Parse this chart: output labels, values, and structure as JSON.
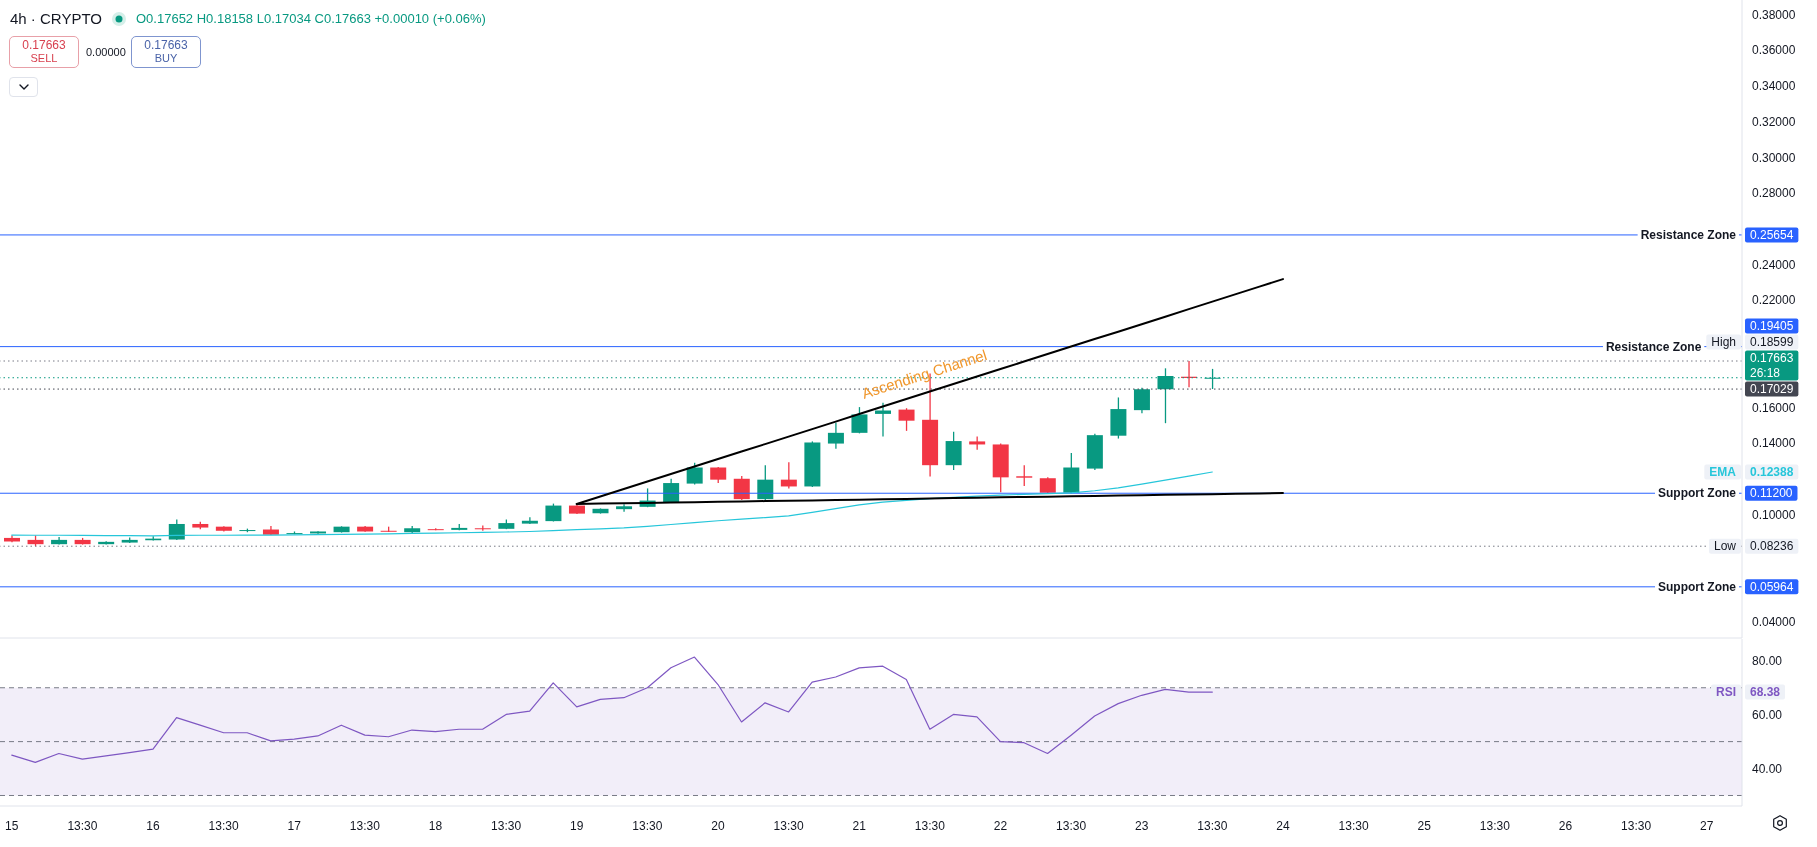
{
  "chart_data": [
    {
      "type": "candlestick",
      "title": "4h · CRYPTO",
      "subtitle": "O0.17652 H0.18158 L0.17034 C0.17663 +0.00010 (+0.06%)",
      "annotations": [
        "0.17663",
        "SELL",
        "0.00000",
        "0.17663",
        "BUY",
        "Ascending Channel",
        "0.25654",
        "0.19405",
        "0.11200",
        "0.05964",
        "0.18599",
        "0.17663",
        "0.17029",
        "0.08236",
        "0.12388"
      ],
      "categories": [
        null,
        null,
        null,
        null,
        null,
        null,
        null,
        null,
        null,
        null,
        null,
        null,
        null,
        null,
        null,
        null,
        null,
        null,
        null,
        null,
        null,
        null,
        null,
        null,
        null,
        null,
        null,
        null,
        null,
        null,
        null,
        null,
        null,
        null,
        null,
        null,
        null,
        null,
        null,
        null,
        null,
        null,
        null,
        null,
        null,
        null,
        null,
        null,
        null,
        null,
        null,
        null,
        null,
        null,
        null,
        null,
        null,
        null,
        null,
        null,
        null,
        null,
        null,
        null,
        null,
        null,
        null,
        null,
        null,
        null,
        null,
        null,
        null,
        null
      ],
      "ohlc": [
        [
          0.087,
          0.0884,
          0.0846,
          0.085
        ],
        [
          0.0859,
          0.0884,
          0.08236,
          0.0835
        ],
        [
          0.0835,
          0.0875,
          0.0833,
          0.0859
        ],
        [
          0.0859,
          0.087,
          0.0833,
          0.0835
        ],
        [
          0.0835,
          0.0852,
          0.0833,
          0.0848
        ],
        [
          0.0844,
          0.0873,
          0.0842,
          0.0859
        ],
        [
          0.0857,
          0.0879,
          0.0855,
          0.0866
        ],
        [
          0.0861,
          0.0973,
          0.0859,
          0.0948
        ],
        [
          0.0948,
          0.096,
          0.0919,
          0.0928
        ],
        [
          0.0933,
          0.0935,
          0.0906,
          0.091
        ],
        [
          0.0912,
          0.0922,
          0.0902,
          0.0914
        ],
        [
          0.0917,
          0.0937,
          0.0886,
          0.0888
        ],
        [
          0.0893,
          0.0906,
          0.0891,
          0.0897
        ],
        [
          0.0895,
          0.0908,
          0.0893,
          0.0906
        ],
        [
          0.0902,
          0.0935,
          0.09,
          0.0933
        ],
        [
          0.0933,
          0.0937,
          0.0904,
          0.0906
        ],
        [
          0.091,
          0.0933,
          0.0904,
          0.0906
        ],
        [
          0.0902,
          0.0937,
          0.0897,
          0.0924
        ],
        [
          0.0919,
          0.0924,
          0.0913,
          0.0915
        ],
        [
          0.0915,
          0.0948,
          0.0913,
          0.0926
        ],
        [
          0.0924,
          0.0939,
          0.091,
          0.0919
        ],
        [
          0.0921,
          0.0973,
          0.0919,
          0.0953
        ],
        [
          0.095,
          0.0986,
          0.0948,
          0.0966
        ],
        [
          0.0964,
          0.1062,
          0.0962,
          0.1051
        ],
        [
          0.1051,
          0.1062,
          0.1004,
          0.1006
        ],
        [
          0.1008,
          0.1035,
          0.1006,
          0.1033
        ],
        [
          0.1031,
          0.1058,
          0.1017,
          0.1047
        ],
        [
          0.1044,
          0.1147,
          0.1042,
          0.1079
        ],
        [
          0.1071,
          0.1201,
          0.1068,
          0.1177
        ],
        [
          0.1174,
          0.1291,
          0.1169,
          0.1264
        ],
        [
          0.1264,
          0.1267,
          0.1177,
          0.1196
        ],
        [
          0.1201,
          0.1217,
          0.1082,
          0.1087
        ],
        [
          0.1087,
          0.1277,
          0.1082,
          0.1196
        ],
        [
          0.1196,
          0.1293,
          0.1147,
          0.1158
        ],
        [
          0.1158,
          0.141,
          0.1155,
          0.1404
        ],
        [
          0.1398,
          0.1514,
          0.1369,
          0.1458
        ],
        [
          0.1458,
          0.1602,
          0.1455,
          0.1561
        ],
        [
          0.1564,
          0.1626,
          0.1438,
          0.1583
        ],
        [
          0.1588,
          0.1596,
          0.1469,
          0.1526
        ],
        [
          0.1531,
          0.179,
          0.1214,
          0.1277
        ],
        [
          0.1277,
          0.1464,
          0.125,
          0.1412
        ],
        [
          0.141,
          0.1437,
          0.1364,
          0.1393
        ],
        [
          0.1393,
          0.1398,
          0.1125,
          0.1209
        ],
        [
          0.1215,
          0.1277,
          0.116,
          0.1207
        ],
        [
          0.1204,
          0.1209,
          0.112,
          0.1123
        ],
        [
          0.1123,
          0.1345,
          0.112,
          0.1264
        ],
        [
          0.1258,
          0.1453,
          0.125,
          0.1445
        ],
        [
          0.1442,
          0.1656,
          0.1426,
          0.1591
        ],
        [
          0.1585,
          0.171,
          0.1568,
          0.1702
        ],
        [
          0.1702,
          0.1819,
          0.1512,
          0.1776
        ],
        [
          0.1772,
          0.18599,
          0.1713,
          0.1765
        ],
        [
          0.17652,
          0.18158,
          0.17034,
          0.17663
        ],
        null,
        null,
        null,
        null,
        null,
        null,
        null,
        null,
        null,
        null,
        null,
        null,
        null,
        null,
        null,
        null,
        null,
        null,
        null,
        null,
        null,
        null
      ],
      "colors": [
        "#f23645",
        "#f23645",
        "#089981",
        "#f23645",
        "#089981",
        "#089981",
        "#089981",
        "#089981",
        "#f23645",
        "#f23645",
        "#089981",
        "#f23645",
        "#089981",
        "#089981",
        "#089981",
        "#f23645",
        "#f23645",
        "#089981",
        "#f23645",
        "#089981",
        "#f23645",
        "#089981",
        "#089981",
        "#089981",
        "#f23645",
        "#089981",
        "#089981",
        "#089981",
        "#089981",
        "#089981",
        "#f23645",
        "#f23645",
        "#089981",
        "#f23645",
        "#089981",
        "#089981",
        "#089981",
        "#089981",
        "#f23645",
        "#f23645",
        "#089981",
        "#f23645",
        "#f23645",
        "#f23645",
        "#f23645",
        "#089981",
        "#089981",
        "#089981",
        "#089981",
        "#089981",
        "#f23645",
        "#089981",
        null,
        null,
        null,
        null,
        null,
        null,
        null,
        null,
        null,
        null,
        null,
        null,
        null,
        null,
        null,
        null,
        null,
        null,
        null,
        null,
        null,
        null
      ],
      "series": [
        {
          "type": "line",
          "name": "EMA",
          "color": "#26c6da",
          "values": [
            0.0886,
            0.0885,
            0.0885,
            0.0884,
            0.0883,
            0.0883,
            0.0882,
            0.0884,
            0.0885,
            0.0885,
            0.0886,
            0.0886,
            0.0887,
            0.0888,
            0.089,
            0.0891,
            0.0893,
            0.0895,
            0.0897,
            0.0899,
            0.0901,
            0.0903,
            0.0906,
            0.0911,
            0.0916,
            0.0921,
            0.0926,
            0.0935,
            0.0945,
            0.0956,
            0.0966,
            0.0975,
            0.0984,
            0.0993,
            0.1013,
            0.1034,
            0.1055,
            0.107,
            0.108,
            0.109,
            0.1097,
            0.1104,
            0.111,
            0.1114,
            0.1118,
            0.1122,
            0.1134,
            0.115,
            0.1171,
            0.1193,
            0.1216,
            0.12388,
            null,
            null,
            null,
            null,
            null,
            null,
            null,
            null,
            null,
            null,
            null,
            null,
            null,
            null,
            null,
            null,
            null,
            null,
            null,
            null,
            null,
            null
          ]
        },
        {
          "type": "line",
          "color": "#000000",
          "values": [
            null,
            null,
            null,
            null,
            null,
            null,
            null,
            null,
            null,
            null,
            null,
            null,
            null,
            null,
            null,
            null,
            null,
            null,
            null,
            null,
            null,
            null,
            null,
            null,
            0.106,
            0.1102,
            0.1144,
            0.1186,
            0.1228,
            0.127,
            0.1312,
            0.1354,
            0.1395,
            0.1437,
            0.1479,
            0.1521,
            0.1563,
            0.1605,
            0.1647,
            0.1689,
            0.1731,
            0.1773,
            0.1815,
            0.1857,
            0.1899,
            0.1941,
            0.1983,
            0.2024,
            0.2066,
            0.2108,
            0.215,
            0.2192,
            0.2234,
            0.2276,
            0.2318,
            null,
            null,
            null,
            null,
            null,
            null,
            null,
            null,
            null,
            null,
            null,
            null,
            null,
            null,
            null,
            null,
            null,
            null,
            null
          ]
        },
        {
          "type": "line",
          "color": "#000000",
          "values": [
            null,
            null,
            null,
            null,
            null,
            null,
            null,
            null,
            null,
            null,
            null,
            null,
            null,
            null,
            null,
            null,
            null,
            null,
            null,
            null,
            null,
            null,
            null,
            null,
            0.106,
            0.1062,
            0.1064,
            0.1066,
            0.1068,
            0.107,
            0.1072,
            0.1074,
            0.1076,
            0.1078,
            0.108,
            0.1082,
            0.1084,
            0.1086,
            0.1088,
            0.1091,
            0.1093,
            0.1095,
            0.1097,
            0.1099,
            0.1101,
            0.1103,
            0.1105,
            0.1107,
            0.1109,
            0.1111,
            0.1113,
            0.1115,
            0.1117,
            0.1119,
            0.1121,
            null,
            null,
            null,
            null,
            null,
            null,
            null,
            null,
            null,
            null,
            null,
            null,
            null,
            null,
            null,
            null,
            null,
            null,
            null
          ]
        }
      ],
      "ylim": [
        0.031,
        0.388
      ],
      "yticks": [
        {
          "value": 0.04,
          "label": "0.04000"
        },
        {
          "value": 0.1,
          "label": "0.10000"
        },
        {
          "value": 0.14,
          "label": "0.14000"
        },
        {
          "value": 0.16,
          "label": "0.16000"
        },
        {
          "value": 0.22,
          "label": "0.22000"
        },
        {
          "value": 0.24,
          "label": "0.24000"
        },
        {
          "value": 0.28,
          "label": "0.28000"
        },
        {
          "value": 0.3,
          "label": "0.30000"
        },
        {
          "value": 0.32,
          "label": "0.32000"
        },
        {
          "value": 0.34,
          "label": "0.34000"
        },
        {
          "value": 0.36,
          "label": "0.36000"
        },
        {
          "value": 0.38,
          "label": "0.38000"
        }
      ],
      "ref_lines": [
        {
          "axis": "y",
          "value": 0.25654,
          "label": "Resistance Zone",
          "color": "#2962ff"
        },
        {
          "axis": "y",
          "value": 0.19405,
          "label": "Resistance Zone",
          "color": "#2962ff"
        },
        {
          "axis": "y",
          "value": 0.112,
          "label": "Support Zone",
          "color": "#2962ff"
        },
        {
          "axis": "y",
          "value": 0.05964,
          "label": "Support Zone",
          "color": "#2962ff"
        },
        {
          "axis": "y",
          "value": 0.18599,
          "label": "High",
          "line_style": "dotted"
        },
        {
          "axis": "y",
          "value": 0.17663,
          "label": "26:18",
          "color": "#089981",
          "line_style": "dotted"
        },
        {
          "axis": "y",
          "value": 0.17029,
          "color": "#434651",
          "line_style": "dotted"
        },
        {
          "axis": "y",
          "value": 0.08236,
          "label": "Low",
          "line_style": "dotted"
        }
      ]
    },
    {
      "type": "line",
      "annotations": [
        "68.38"
      ],
      "categories": [
        "15",
        null,
        null,
        "13:30",
        null,
        null,
        "16",
        null,
        null,
        "13:30",
        null,
        null,
        "17",
        null,
        null,
        "13:30",
        null,
        null,
        "18",
        null,
        null,
        "13:30",
        null,
        null,
        "19",
        null,
        null,
        "13:30",
        null,
        null,
        "20",
        null,
        null,
        "13:30",
        null,
        null,
        "21",
        null,
        null,
        "13:30",
        null,
        null,
        "22",
        null,
        null,
        "13:30",
        null,
        null,
        "23",
        null,
        null,
        "13:30",
        null,
        null,
        "24",
        null,
        null,
        "13:30",
        null,
        null,
        "25",
        null,
        null,
        "13:30",
        null,
        null,
        "26",
        null,
        null,
        "13:30",
        null,
        null,
        "27",
        null
      ],
      "series": [
        {
          "name": "RSI",
          "color": "#7e57c2",
          "values": [
            45.0,
            42.3,
            45.6,
            43.5,
            44.7,
            45.9,
            47.2,
            58.9,
            56.1,
            53.3,
            53.3,
            50.3,
            50.9,
            52.1,
            56.1,
            52.4,
            51.8,
            54.3,
            53.7,
            54.6,
            54.6,
            60.1,
            61.3,
            71.8,
            62.9,
            65.7,
            66.3,
            70.0,
            77.4,
            81.4,
            71.2,
            57.3,
            64.4,
            61.0,
            72.1,
            74.0,
            77.4,
            78.0,
            73.1,
            54.6,
            60.1,
            59.2,
            50.0,
            49.6,
            45.6,
            52.4,
            59.5,
            64.1,
            67.2,
            69.4,
            68.4,
            68.38,
            null,
            null,
            null,
            null,
            null,
            null,
            null,
            null,
            null,
            null,
            null,
            null,
            null,
            null,
            null,
            null,
            null,
            null,
            null,
            null,
            null,
            null
          ]
        }
      ],
      "ylim": [
        26.1,
        88.1
      ],
      "yticks": [
        {
          "value": 40,
          "label": "40.00"
        },
        {
          "value": 60,
          "label": "60.00"
        },
        {
          "value": 80,
          "label": "80.00"
        }
      ],
      "bands": [
        {
          "axis": "y",
          "from": 30,
          "to": 70,
          "color": "#7e57c2"
        }
      ],
      "ref_lines": [
        {
          "axis": "y",
          "value": 70,
          "line_style": "dashed"
        },
        {
          "axis": "y",
          "value": 50,
          "line_style": "dashed"
        },
        {
          "axis": "y",
          "value": 30,
          "line_style": "dashed"
        }
      ]
    }
  ]
}
